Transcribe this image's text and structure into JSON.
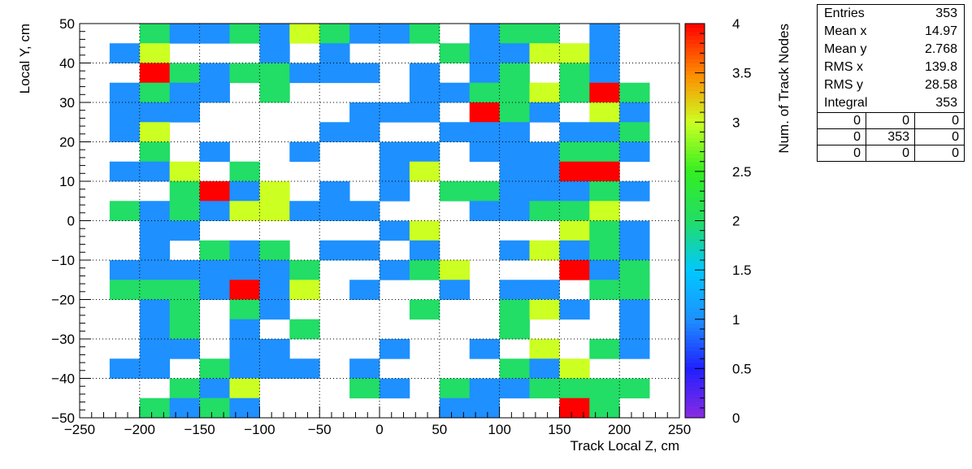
{
  "chart_data": {
    "type": "heatmap",
    "title": "",
    "xlabel": "Track Local Z, cm",
    "ylabel": "Local Y, cm",
    "zlabel": "Num. of Track Nodes",
    "xlim": [
      -250,
      250
    ],
    "ylim": [
      -50,
      50
    ],
    "zlim": [
      0,
      4
    ],
    "x_bin_width": 25,
    "y_bin_width": 5,
    "grid": true,
    "x_ticks": [
      "−250",
      "−200",
      "−150",
      "−100",
      "−50",
      "0",
      "50",
      "100",
      "150",
      "200",
      "250"
    ],
    "y_ticks": [
      "−50",
      "−40",
      "−30",
      "−20",
      "−10",
      "0",
      "10",
      "20",
      "30",
      "40",
      "50"
    ],
    "z_ticks": [
      "0",
      "0.5",
      "1",
      "1.5",
      "2",
      "2.5",
      "3",
      "3.5",
      "4"
    ],
    "x_bin_centers": [
      -212.5,
      -187.5,
      -162.5,
      -137.5,
      -112.5,
      -87.5,
      -62.5,
      -37.5,
      -12.5,
      12.5,
      37.5,
      62.5,
      87.5,
      112.5,
      137.5,
      162.5,
      187.5,
      212.5,
      237.5
    ],
    "y_bin_centers_top_to_bottom": [
      47.5,
      42.5,
      37.5,
      32.5,
      27.5,
      22.5,
      17.5,
      12.5,
      7.5,
      2.5,
      -2.5,
      -7.5,
      -12.5,
      -17.5,
      -22.5,
      -27.5,
      -32.5,
      -37.5,
      -42.5,
      -47.5
    ],
    "z_rows_top_to_bottom": [
      [
        0,
        2,
        1,
        1,
        2,
        1,
        3,
        2,
        1,
        1,
        2,
        0,
        1,
        2,
        2,
        0,
        1,
        0,
        0
      ],
      [
        1,
        3,
        0,
        0,
        0,
        1,
        0,
        1,
        0,
        0,
        0,
        2,
        1,
        1,
        3,
        3,
        1,
        0,
        0
      ],
      [
        0,
        4,
        2,
        1,
        2,
        2,
        1,
        1,
        1,
        0,
        1,
        0,
        1,
        2,
        0,
        2,
        1,
        0,
        0
      ],
      [
        1,
        2,
        1,
        1,
        0,
        2,
        0,
        0,
        0,
        0,
        1,
        1,
        2,
        2,
        3,
        2,
        4,
        2,
        0
      ],
      [
        1,
        1,
        1,
        0,
        0,
        0,
        0,
        0,
        1,
        1,
        1,
        0,
        4,
        2,
        1,
        0,
        3,
        1,
        0
      ],
      [
        1,
        3,
        0,
        0,
        0,
        0,
        0,
        1,
        1,
        0,
        0,
        1,
        1,
        1,
        0,
        1,
        1,
        2,
        0
      ],
      [
        0,
        2,
        0,
        1,
        0,
        0,
        1,
        0,
        0,
        1,
        1,
        0,
        1,
        1,
        1,
        2,
        2,
        1,
        0
      ],
      [
        1,
        1,
        3,
        0,
        2,
        0,
        0,
        0,
        0,
        1,
        3,
        0,
        0,
        1,
        1,
        4,
        4,
        0,
        0
      ],
      [
        0,
        0,
        2,
        4,
        1,
        3,
        0,
        1,
        0,
        1,
        0,
        2,
        2,
        1,
        1,
        1,
        2,
        1,
        0
      ],
      [
        2,
        1,
        2,
        1,
        3,
        3,
        1,
        1,
        1,
        0,
        0,
        0,
        1,
        1,
        2,
        2,
        3,
        0,
        0
      ],
      [
        0,
        1,
        1,
        0,
        0,
        0,
        0,
        0,
        0,
        1,
        3,
        0,
        0,
        0,
        0,
        3,
        2,
        1,
        0
      ],
      [
        0,
        1,
        0,
        2,
        1,
        2,
        0,
        1,
        1,
        0,
        1,
        0,
        0,
        1,
        3,
        1,
        2,
        1,
        0
      ],
      [
        1,
        1,
        1,
        1,
        1,
        1,
        2,
        0,
        0,
        1,
        2,
        3,
        0,
        0,
        0,
        4,
        1,
        2,
        0
      ],
      [
        2,
        2,
        2,
        1,
        4,
        1,
        3,
        0,
        1,
        0,
        0,
        1,
        0,
        1,
        1,
        0,
        2,
        2,
        0
      ],
      [
        0,
        1,
        2,
        0,
        2,
        1,
        0,
        0,
        0,
        0,
        2,
        0,
        0,
        2,
        3,
        1,
        0,
        1,
        0
      ],
      [
        0,
        1,
        2,
        0,
        1,
        0,
        2,
        0,
        0,
        0,
        0,
        0,
        0,
        2,
        0,
        0,
        0,
        1,
        0
      ],
      [
        0,
        1,
        1,
        0,
        1,
        1,
        0,
        0,
        0,
        1,
        0,
        0,
        1,
        0,
        3,
        0,
        2,
        1,
        0
      ],
      [
        1,
        1,
        0,
        2,
        1,
        1,
        1,
        0,
        1,
        0,
        0,
        0,
        0,
        2,
        1,
        3,
        0,
        0,
        0
      ],
      [
        0,
        0,
        2,
        1,
        3,
        0,
        0,
        0,
        2,
        1,
        0,
        2,
        1,
        1,
        2,
        2,
        2,
        2,
        0
      ],
      [
        0,
        2,
        1,
        2,
        1,
        0,
        0,
        0,
        0,
        0,
        0,
        1,
        1,
        0,
        0,
        4,
        2,
        0,
        0
      ]
    ],
    "stats_box": {
      "rows": [
        {
          "label": "Entries",
          "value": "353"
        },
        {
          "label": "Mean x",
          "value": "14.97"
        },
        {
          "label": "Mean y",
          "value": "2.768"
        },
        {
          "label": "RMS x",
          "value": "139.8"
        },
        {
          "label": "RMS y",
          "value": "28.58"
        },
        {
          "label": "Integral",
          "value": "353"
        }
      ],
      "grid": [
        [
          "0",
          "0",
          "0"
        ],
        [
          "0",
          "353",
          "0"
        ],
        [
          "0",
          "0",
          "0"
        ]
      ]
    },
    "palette": [
      "#8a2be2",
      "#2020ff",
      "#1e90ff",
      "#00c8ff",
      "#22dd66",
      "#33ee22",
      "#ccff22",
      "#ff8800",
      "#ff0000"
    ]
  }
}
